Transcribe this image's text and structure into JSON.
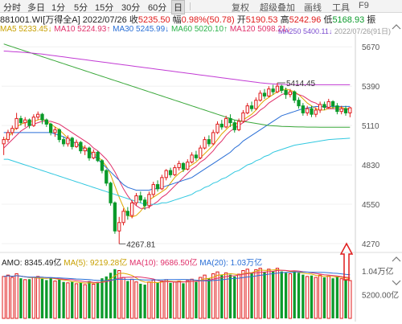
{
  "toolbar": {
    "items": [
      "分时",
      "多日",
      "1分",
      "5分",
      "15分",
      "30分",
      "60分",
      "日"
    ],
    "active_index": 7,
    "right_items": [
      "复权",
      "超级叠加",
      "画线",
      "工具",
      "F9"
    ]
  },
  "info": {
    "code": "881001.WI",
    "name": "[万得全A]",
    "date": "2022/07/26",
    "close_label": "收",
    "close_value": "5235.50",
    "change_label": "幅",
    "change_value": "0.98%(50.78)",
    "open_label": "开",
    "open_value": "5190.53",
    "high_label": "高",
    "high_value": "5242.96",
    "low_label": "低",
    "low_value": "5168.93",
    "extra_label": "振"
  },
  "ma_legend": {
    "ma5": "MA5  5233.45↓",
    "ma10": "MA10  5224.93↑",
    "ma30": "MA30  5245.99↓",
    "ma60": "MA60  5020.10↑",
    "ma120": "MA120  5098.21↓",
    "ma250": "MA250  5400.11↓",
    "overlay": "2022/07/26(91日)"
  },
  "volume": {
    "amo": "AMO: 8345.49亿",
    "ma5": "MA(5): 9219.28亿",
    "ma10": "MA(10): 9686.50亿",
    "ma20": "MA(20): 1.03万亿"
  },
  "axis": {
    "price_ticks": [
      "5670",
      "5390",
      "5110",
      "4830",
      "4550",
      "4270"
    ],
    "volume_ticks": [
      "1.04万亿",
      "5200.00亿"
    ]
  },
  "annotations": {
    "high_label": "5414.45",
    "low_label": "4267.81"
  },
  "colors": {
    "up": "#e01b1b",
    "down": "#0a9a2a",
    "arrow": "#e01b1b"
  },
  "chart_data": {
    "type": "candlestick",
    "price_range": [
      4230,
      5740
    ],
    "volume_range": [
      0,
      1.2
    ],
    "volume_unit": "万亿",
    "candles": [
      {
        "o": 4980,
        "c": 5010,
        "h": 5030,
        "l": 4900,
        "v": 0.92
      },
      {
        "o": 5010,
        "c": 5060,
        "h": 5080,
        "l": 4990,
        "v": 0.95
      },
      {
        "o": 5060,
        "c": 5090,
        "h": 5110,
        "l": 5040,
        "v": 0.9
      },
      {
        "o": 5090,
        "c": 5160,
        "h": 5200,
        "l": 5080,
        "v": 0.98
      },
      {
        "o": 5160,
        "c": 5130,
        "h": 5180,
        "l": 5110,
        "v": 0.88
      },
      {
        "o": 5130,
        "c": 5150,
        "h": 5170,
        "l": 5100,
        "v": 0.85
      },
      {
        "o": 5150,
        "c": 5110,
        "h": 5160,
        "l": 5090,
        "v": 0.86
      },
      {
        "o": 5110,
        "c": 5170,
        "h": 5190,
        "l": 5100,
        "v": 0.9
      },
      {
        "o": 5170,
        "c": 5190,
        "h": 5210,
        "l": 5150,
        "v": 0.92
      },
      {
        "o": 5190,
        "c": 5150,
        "h": 5200,
        "l": 5120,
        "v": 0.87
      },
      {
        "o": 5150,
        "c": 5120,
        "h": 5160,
        "l": 5100,
        "v": 0.84
      },
      {
        "o": 5120,
        "c": 5060,
        "h": 5130,
        "l": 5040,
        "v": 0.9
      },
      {
        "o": 5060,
        "c": 5080,
        "h": 5100,
        "l": 5030,
        "v": 0.82
      },
      {
        "o": 5080,
        "c": 5010,
        "h": 5090,
        "l": 4990,
        "v": 0.85
      },
      {
        "o": 5010,
        "c": 4980,
        "h": 5030,
        "l": 4960,
        "v": 0.8
      },
      {
        "o": 4980,
        "c": 5020,
        "h": 5040,
        "l": 4960,
        "v": 0.78
      },
      {
        "o": 5020,
        "c": 4960,
        "h": 5030,
        "l": 4940,
        "v": 0.8
      },
      {
        "o": 4960,
        "c": 4990,
        "h": 5010,
        "l": 4950,
        "v": 0.76
      },
      {
        "o": 4990,
        "c": 4930,
        "h": 5000,
        "l": 4910,
        "v": 0.79
      },
      {
        "o": 4930,
        "c": 4950,
        "h": 4970,
        "l": 4900,
        "v": 0.74
      },
      {
        "o": 4950,
        "c": 4880,
        "h": 4960,
        "l": 4860,
        "v": 0.82
      },
      {
        "o": 4880,
        "c": 4920,
        "h": 4940,
        "l": 4870,
        "v": 0.75
      },
      {
        "o": 4920,
        "c": 4860,
        "h": 4930,
        "l": 4850,
        "v": 0.8
      },
      {
        "o": 4860,
        "c": 4790,
        "h": 4870,
        "l": 4770,
        "v": 0.88
      },
      {
        "o": 4790,
        "c": 4700,
        "h": 4800,
        "l": 4680,
        "v": 0.92
      },
      {
        "o": 4700,
        "c": 4560,
        "h": 4710,
        "l": 4540,
        "v": 1.0
      },
      {
        "o": 4560,
        "c": 4360,
        "h": 4570,
        "l": 4340,
        "v": 1.08
      },
      {
        "o": 4360,
        "c": 4420,
        "h": 4460,
        "l": 4268,
        "v": 1.05
      },
      {
        "o": 4420,
        "c": 4500,
        "h": 4520,
        "l": 4400,
        "v": 0.9
      },
      {
        "o": 4500,
        "c": 4470,
        "h": 4530,
        "l": 4440,
        "v": 0.82
      },
      {
        "o": 4470,
        "c": 4560,
        "h": 4580,
        "l": 4450,
        "v": 0.86
      },
      {
        "o": 4560,
        "c": 4610,
        "h": 4630,
        "l": 4540,
        "v": 0.8
      },
      {
        "o": 4610,
        "c": 4580,
        "h": 4640,
        "l": 4560,
        "v": 0.76
      },
      {
        "o": 4580,
        "c": 4540,
        "h": 4600,
        "l": 4510,
        "v": 0.74
      },
      {
        "o": 4540,
        "c": 4620,
        "h": 4640,
        "l": 4520,
        "v": 0.8
      },
      {
        "o": 4620,
        "c": 4690,
        "h": 4710,
        "l": 4600,
        "v": 0.84
      },
      {
        "o": 4690,
        "c": 4660,
        "h": 4720,
        "l": 4640,
        "v": 0.78
      },
      {
        "o": 4660,
        "c": 4740,
        "h": 4760,
        "l": 4650,
        "v": 0.82
      },
      {
        "o": 4740,
        "c": 4790,
        "h": 4800,
        "l": 4720,
        "v": 0.85
      },
      {
        "o": 4790,
        "c": 4760,
        "h": 4810,
        "l": 4740,
        "v": 0.78
      },
      {
        "o": 4760,
        "c": 4810,
        "h": 4830,
        "l": 4750,
        "v": 0.8
      },
      {
        "o": 4810,
        "c": 4840,
        "h": 4860,
        "l": 4790,
        "v": 0.82
      },
      {
        "o": 4840,
        "c": 4800,
        "h": 4850,
        "l": 4780,
        "v": 0.77
      },
      {
        "o": 4800,
        "c": 4850,
        "h": 4870,
        "l": 4790,
        "v": 0.83
      },
      {
        "o": 4850,
        "c": 4900,
        "h": 4920,
        "l": 4840,
        "v": 0.86
      },
      {
        "o": 4900,
        "c": 4880,
        "h": 4930,
        "l": 4860,
        "v": 0.8
      },
      {
        "o": 4880,
        "c": 4950,
        "h": 4970,
        "l": 4870,
        "v": 0.9
      },
      {
        "o": 4950,
        "c": 5010,
        "h": 5030,
        "l": 4940,
        "v": 0.95
      },
      {
        "o": 5010,
        "c": 4980,
        "h": 5040,
        "l": 4960,
        "v": 0.88
      },
      {
        "o": 4980,
        "c": 5060,
        "h": 5080,
        "l": 4970,
        "v": 0.98
      },
      {
        "o": 5060,
        "c": 5120,
        "h": 5140,
        "l": 5050,
        "v": 1.02
      },
      {
        "o": 5120,
        "c": 5100,
        "h": 5150,
        "l": 5080,
        "v": 0.95
      },
      {
        "o": 5100,
        "c": 5160,
        "h": 5180,
        "l": 5090,
        "v": 1.0
      },
      {
        "o": 5160,
        "c": 5130,
        "h": 5190,
        "l": 5100,
        "v": 0.96
      },
      {
        "o": 5130,
        "c": 5080,
        "h": 5150,
        "l": 5060,
        "v": 0.92
      },
      {
        "o": 5080,
        "c": 5140,
        "h": 5160,
        "l": 5070,
        "v": 0.97
      },
      {
        "o": 5140,
        "c": 5200,
        "h": 5220,
        "l": 5130,
        "v": 1.05
      },
      {
        "o": 5200,
        "c": 5250,
        "h": 5270,
        "l": 5190,
        "v": 1.08
      },
      {
        "o": 5250,
        "c": 5230,
        "h": 5280,
        "l": 5210,
        "v": 1.0
      },
      {
        "o": 5230,
        "c": 5290,
        "h": 5310,
        "l": 5220,
        "v": 1.07
      },
      {
        "o": 5290,
        "c": 5340,
        "h": 5360,
        "l": 5280,
        "v": 1.1
      },
      {
        "o": 5340,
        "c": 5320,
        "h": 5370,
        "l": 5300,
        "v": 1.02
      },
      {
        "o": 5320,
        "c": 5370,
        "h": 5390,
        "l": 5310,
        "v": 1.08
      },
      {
        "o": 5370,
        "c": 5350,
        "h": 5400,
        "l": 5330,
        "v": 1.04
      },
      {
        "o": 5350,
        "c": 5390,
        "h": 5414,
        "l": 5340,
        "v": 1.1
      },
      {
        "o": 5390,
        "c": 5360,
        "h": 5400,
        "l": 5340,
        "v": 1.03
      },
      {
        "o": 5360,
        "c": 5330,
        "h": 5380,
        "l": 5300,
        "v": 1.0
      },
      {
        "o": 5330,
        "c": 5350,
        "h": 5370,
        "l": 5310,
        "v": 0.98
      },
      {
        "o": 5350,
        "c": 5290,
        "h": 5360,
        "l": 5270,
        "v": 1.04
      },
      {
        "o": 5290,
        "c": 5250,
        "h": 5310,
        "l": 5230,
        "v": 1.0
      },
      {
        "o": 5250,
        "c": 5200,
        "h": 5270,
        "l": 5180,
        "v": 0.96
      },
      {
        "o": 5200,
        "c": 5230,
        "h": 5250,
        "l": 5180,
        "v": 0.92
      },
      {
        "o": 5230,
        "c": 5190,
        "h": 5250,
        "l": 5170,
        "v": 0.94
      },
      {
        "o": 5190,
        "c": 5220,
        "h": 5240,
        "l": 5170,
        "v": 0.9
      },
      {
        "o": 5220,
        "c": 5260,
        "h": 5280,
        "l": 5200,
        "v": 0.95
      },
      {
        "o": 5260,
        "c": 5240,
        "h": 5280,
        "l": 5220,
        "v": 0.9
      },
      {
        "o": 5240,
        "c": 5280,
        "h": 5300,
        "l": 5230,
        "v": 0.93
      },
      {
        "o": 5280,
        "c": 5250,
        "h": 5290,
        "l": 5230,
        "v": 0.88
      },
      {
        "o": 5250,
        "c": 5210,
        "h": 5270,
        "l": 5190,
        "v": 0.92
      },
      {
        "o": 5210,
        "c": 5230,
        "h": 5250,
        "l": 5190,
        "v": 0.87
      },
      {
        "o": 5230,
        "c": 5200,
        "h": 5250,
        "l": 5180,
        "v": 0.85
      },
      {
        "o": 5200,
        "c": 5236,
        "h": 5243,
        "l": 5169,
        "v": 0.83
      }
    ],
    "moving_averages": {
      "MA5": [
        5000,
        5030,
        5060,
        5100,
        5120,
        5130,
        5140,
        5140,
        5150,
        5160,
        5140,
        5120,
        5100,
        5080,
        5050,
        5020,
        5000,
        4980,
        4970,
        4950,
        4930,
        4910,
        4890,
        4860,
        4820,
        4760,
        4680,
        4600,
        4530,
        4470,
        4460,
        4470,
        4500,
        4540,
        4580,
        4600,
        4620,
        4640,
        4660,
        4700,
        4740,
        4770,
        4790,
        4810,
        4830,
        4850,
        4880,
        4910,
        4940,
        4970,
        5010,
        5050,
        5080,
        5110,
        5120,
        5130,
        5150,
        5170,
        5190,
        5220,
        5260,
        5290,
        5310,
        5330,
        5350,
        5360,
        5370,
        5360,
        5350,
        5330,
        5300,
        5270,
        5250,
        5230,
        5220,
        5220,
        5230,
        5240,
        5240,
        5240,
        5230,
        5233
      ],
      "MA10": [
        4950,
        4980,
        5010,
        5040,
        5070,
        5090,
        5110,
        5120,
        5130,
        5140,
        5140,
        5140,
        5130,
        5120,
        5100,
        5080,
        5060,
        5040,
        5020,
        5000,
        4980,
        4950,
        4930,
        4900,
        4870,
        4830,
        4780,
        4720,
        4660,
        4610,
        4570,
        4540,
        4520,
        4520,
        4530,
        4550,
        4570,
        4600,
        4620,
        4650,
        4680,
        4710,
        4740,
        4770,
        4800,
        4820,
        4850,
        4870,
        4900,
        4930,
        4970,
        5000,
        5040,
        5070,
        5090,
        5110,
        5130,
        5150,
        5170,
        5190,
        5220,
        5240,
        5270,
        5290,
        5310,
        5330,
        5340,
        5340,
        5340,
        5330,
        5320,
        5300,
        5280,
        5270,
        5250,
        5240,
        5230,
        5230,
        5230,
        5225,
        5225,
        5225
      ],
      "MA30": [
        5060,
        5060,
        5060,
        5060,
        5060,
        5060,
        5060,
        5060,
        5060,
        5060,
        5060,
        5060,
        5050,
        5040,
        5030,
        5010,
        5000,
        4980,
        4960,
        4940,
        4920,
        4900,
        4870,
        4840,
        4810,
        4780,
        4750,
        4720,
        4690,
        4670,
        4660,
        4650,
        4650,
        4650,
        4650,
        4660,
        4660,
        4670,
        4680,
        4690,
        4700,
        4710,
        4720,
        4730,
        4740,
        4760,
        4780,
        4800,
        4820,
        4840,
        4860,
        4880,
        4900,
        4920,
        4950,
        4970,
        5000,
        5020,
        5040,
        5060,
        5080,
        5100,
        5120,
        5140,
        5160,
        5180,
        5190,
        5200,
        5210,
        5220,
        5230,
        5235,
        5240,
        5245,
        5245,
        5245,
        5246,
        5246,
        5246,
        5246,
        5246,
        5246
      ],
      "MA60": [
        4870,
        4870,
        4860,
        4850,
        4840,
        4830,
        4820,
        4810,
        4800,
        4790,
        4780,
        4770,
        4760,
        4750,
        4740,
        4730,
        4720,
        4710,
        4700,
        4690,
        4680,
        4670,
        4660,
        4650,
        4640,
        4630,
        4620,
        4610,
        4600,
        4590,
        4580,
        4570,
        4560,
        4550,
        4550,
        4550,
        4550,
        4560,
        4560,
        4570,
        4580,
        4590,
        4600,
        4610,
        4620,
        4640,
        4650,
        4670,
        4680,
        4700,
        4710,
        4730,
        4740,
        4760,
        4780,
        4790,
        4810,
        4830,
        4840,
        4860,
        4870,
        4890,
        4900,
        4920,
        4930,
        4940,
        4950,
        4960,
        4970,
        4975,
        4980,
        4985,
        4990,
        4995,
        5000,
        5005,
        5010,
        5012,
        5014,
        5016,
        5018,
        5020
      ],
      "MA120": [
        5690,
        5680,
        5670,
        5660,
        5650,
        5640,
        5630,
        5620,
        5610,
        5600,
        5590,
        5580,
        5570,
        5560,
        5550,
        5540,
        5530,
        5520,
        5510,
        5500,
        5490,
        5480,
        5470,
        5460,
        5450,
        5440,
        5430,
        5420,
        5410,
        5400,
        5390,
        5380,
        5370,
        5360,
        5350,
        5340,
        5330,
        5320,
        5310,
        5300,
        5290,
        5280,
        5270,
        5260,
        5250,
        5240,
        5230,
        5220,
        5210,
        5200,
        5190,
        5180,
        5170,
        5160,
        5150,
        5145,
        5140,
        5135,
        5130,
        5125,
        5120,
        5115,
        5110,
        5108,
        5106,
        5104,
        5103,
        5102,
        5101,
        5100,
        5100,
        5099,
        5099,
        5099,
        5098,
        5098,
        5098,
        5098,
        5098,
        5098,
        5098,
        5098
      ],
      "MA250": [
        5640,
        5638,
        5636,
        5634,
        5632,
        5630,
        5627,
        5624,
        5621,
        5618,
        5614,
        5610,
        5606,
        5602,
        5598,
        5594,
        5590,
        5586,
        5582,
        5578,
        5574,
        5570,
        5566,
        5562,
        5558,
        5554,
        5550,
        5546,
        5542,
        5538,
        5534,
        5530,
        5526,
        5522,
        5518,
        5514,
        5510,
        5506,
        5502,
        5498,
        5494,
        5490,
        5486,
        5482,
        5478,
        5474,
        5470,
        5466,
        5462,
        5458,
        5454,
        5450,
        5446,
        5442,
        5438,
        5434,
        5430,
        5426,
        5422,
        5418,
        5414,
        5411,
        5408,
        5406,
        5404,
        5403,
        5402,
        5401,
        5401,
        5400,
        5400,
        5400,
        5400,
        5400,
        5400,
        5400,
        5400,
        5400,
        5400,
        5400,
        5400,
        5400
      ]
    }
  }
}
